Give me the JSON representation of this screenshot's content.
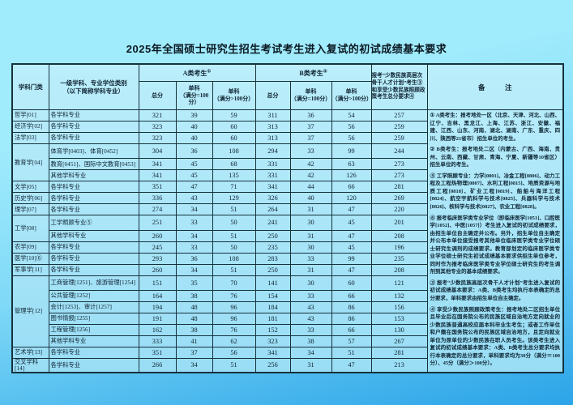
{
  "title": "2025年全国硕士研究生招生考试考生进入复试的初试成绩基本要求",
  "colors": {
    "page_bg_top": "#a0ebfc",
    "page_bg_mid": "#7fd9f7",
    "page_bg_bottom": "#2ba4e8",
    "table_fill_top": "#bceefb",
    "table_fill_bottom": "#99ddf5",
    "border": "#16323e",
    "text": "#0e2230"
  },
  "table": {
    "header": {
      "col_category": "学科门类",
      "col_discipline": "一级学科、专业学位类别\n（以下简称学科专业）",
      "group_a": "A类考生",
      "group_a_sup": "①",
      "group_b": "B类考生",
      "group_b_sup": "②",
      "col_minority": "报考“少数民族高层次骨干人才计划”考生③和享受少数民族照顾政策考生总分要求④",
      "col_remarks": "备　注",
      "sub_total": "总分",
      "sub_single_100": "单科\n（满分=100分）",
      "sub_single_gt100": "单科\n（满分>100分）"
    },
    "groups": [
      {
        "category": "哲学[01]",
        "rows": [
          {
            "discipline": "各学科专业",
            "values": [
              321,
              39,
              59,
              311,
              36,
              54,
              257
            ]
          }
        ]
      },
      {
        "category": "经济学[02]",
        "rows": [
          {
            "discipline": "各学科专业",
            "values": [
              323,
              40,
              60,
              313,
              37,
              56,
              259
            ]
          }
        ]
      },
      {
        "category": "法学[03]",
        "rows": [
          {
            "discipline": "各学科专业",
            "values": [
              323,
              40,
              60,
              313,
              37,
              56,
              259
            ]
          }
        ]
      },
      {
        "category": "教育学[04]",
        "rows": [
          {
            "discipline": "体育学[0403]、体育[0452]",
            "values": [
              304,
              36,
              108,
              294,
              33,
              99,
              244
            ]
          },
          {
            "discipline": "教育[0451]、国际中文教育[0453]",
            "values": [
              341,
              45,
              68,
              331,
              42,
              63,
              273
            ]
          },
          {
            "discipline": "其他学科专业",
            "values": [
              341,
              45,
              135,
              331,
              42,
              126,
              273
            ]
          }
        ]
      },
      {
        "category": "文学[05]",
        "rows": [
          {
            "discipline": "各学科专业",
            "values": [
              351,
              47,
              71,
              341,
              44,
              66,
              281
            ]
          }
        ]
      },
      {
        "category": "历史学[06]",
        "rows": [
          {
            "discipline": "各学科专业",
            "values": [
              336,
              43,
              129,
              326,
              40,
              120,
              269
            ]
          }
        ]
      },
      {
        "category": "理学[07]",
        "rows": [
          {
            "discipline": "各学科专业",
            "values": [
              274,
              34,
              51,
              264,
              31,
              47,
              220
            ]
          }
        ]
      },
      {
        "category": "工学[08]",
        "rows": [
          {
            "discipline": "工学照顾专业⑤",
            "values": [
              251,
              33,
              50,
              241,
              30,
              45,
              201
            ]
          },
          {
            "discipline": "其他学科专业",
            "values": [
              260,
              34,
              51,
              250,
              31,
              47,
              208
            ]
          }
        ]
      },
      {
        "category": "农学[09]",
        "rows": [
          {
            "discipline": "各学科专业",
            "values": [
              245,
              33,
              50,
              235,
              30,
              45,
              196
            ]
          }
        ]
      },
      {
        "category": "医学[10]⑥",
        "rows": [
          {
            "discipline": "各学科专业",
            "values": [
              293,
              36,
              108,
              283,
              33,
              99,
              235
            ]
          }
        ]
      },
      {
        "category": "军事学[11]",
        "rows": [
          {
            "discipline": "各学科专业",
            "values": [
              260,
              34,
              51,
              250,
              31,
              47,
              208
            ]
          }
        ]
      },
      {
        "category": "管理学[12]",
        "rows": [
          {
            "discipline": "工商管理[1251]、旅游管理[1254]",
            "values": [
              151,
              35,
              70,
              141,
              30,
              60,
              121
            ]
          },
          {
            "discipline": "公共管理[1252]",
            "values": [
              164,
              38,
              76,
              154,
              33,
              66,
              132
            ]
          },
          {
            "discipline": "会计[1253]、审计[1257]",
            "values": [
              194,
              48,
              96,
              184,
              43,
              86,
              156
            ]
          },
          {
            "discipline": "图书情报[1255]",
            "values": [
              191,
              48,
              96,
              181,
              43,
              86,
              153
            ]
          },
          {
            "discipline": "工程管理[1256]",
            "values": [
              162,
              38,
              76,
              152,
              33,
              66,
              130
            ]
          },
          {
            "discipline": "其他学科专业",
            "values": [
              333,
              41,
              62,
              323,
              38,
              57,
              267
            ]
          }
        ]
      },
      {
        "category": "艺术学[13]",
        "rows": [
          {
            "discipline": "各学科专业",
            "values": [
              351,
              37,
              56,
              341,
              34,
              51,
              281
            ]
          }
        ]
      },
      {
        "category": "交叉学科[14]",
        "rows": [
          {
            "discipline": "各学科专业",
            "values": [
              266,
              34,
              51,
              256,
              31,
              47,
              213
            ]
          }
        ]
      }
    ]
  },
  "remarks": [
    {
      "text": "① A类考生：报考地处一区（北京、天津、河北、山西、辽宁、吉林、黑龙江、上海、江苏、浙江、安徽、福建、江西、山东、河南、湖北、湖南、广东、重庆、四川、陕西等21省市）招生单位的考生。"
    },
    {
      "text": "② B类考生：报考地处二区（内蒙古、广西、海南、贵州、云南、西藏、甘肃、青海、宁夏、新疆等10省区）招生单位的考生。"
    },
    {
      "text": "⑤ 工学照顾专业：力学[0801]、冶金工程[0806]、动力工程及工程热物理[0807]、水利工程[0815]、地质资源与地质工程[0818]、矿业工程[0819]、船舶与海洋工程[0824]、航空宇航科学与技术[0825]、兵器科学与技术[0826]、核科学与技术[0827]、农业工程[0828]。"
    },
    {
      "text": "⑥ 报考临床医学类专业学位（即临床医学[1051]、口腔医学[1052]、中医[1057]）考生进入复试的初试成绩要求，由招生单位自主确定并公布。另外，招生单位自主确定并公布本单位接受报考其他单位临床医学类专业学位硕士研究生调剂的成绩要求。教育部划定的临床医学类专业学位硕士研究生初试成绩基本要求供招生单位参考，同时作为报考临床医学类专业学位硕士研究生的考生调剂到其他专业的基本成绩要求。"
    },
    {
      "text": "③ 报考“少数民族高层次骨干人才计划”考生进入复试的初试成绩基本要求：A类、B类考生均执行本表确定的总分要求，单科要求由招生单位自主确定。"
    },
    {
      "text": "④ 享受少数民族照顾政策考生：报考地处二区招生单位且毕业后在国务院公布的民族区域自治地方定向就业的少数民族普通高校应届本科毕业生考生；或者工作单位和户籍在国务院公布的民族区域自治地方，且定向就业单位为原单位的少数民族在职人员考生。该类考生进入复试的初试成绩基本要求：A类、B类考生总分要求均执行本表确定的总分要求，单科要求均为30分（满分＝100分）、45分（满分＞100分）。"
    }
  ]
}
